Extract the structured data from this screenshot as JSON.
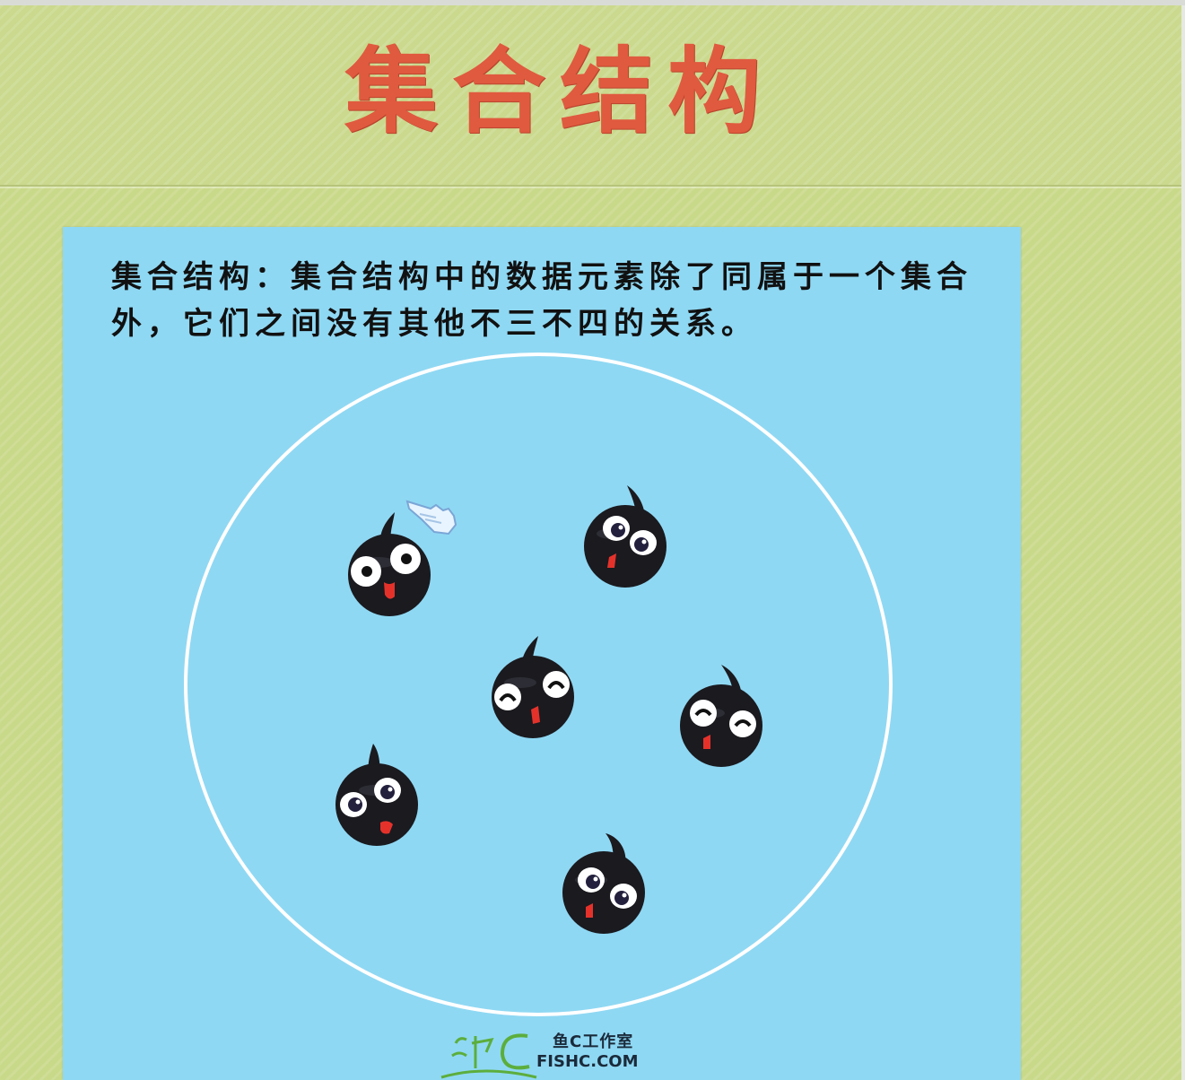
{
  "slide": {
    "title": "集合结构",
    "description": "集合结构：集合结构中的数据元素除了同属于一个集合外，它们之间没有其他不三不四的关系。"
  },
  "colors": {
    "title": "#e05a3f",
    "background": "#c9d98a",
    "panel": "#8fd8f3",
    "ring": "#ffffff"
  },
  "elements": [
    {
      "icon": "tadpole-icon",
      "expression": "surprised"
    },
    {
      "icon": "tadpole-icon",
      "expression": "looking"
    },
    {
      "icon": "tadpole-icon",
      "expression": "happy"
    },
    {
      "icon": "tadpole-icon",
      "expression": "smiling"
    },
    {
      "icon": "tadpole-icon",
      "expression": "looking"
    },
    {
      "icon": "tadpole-icon",
      "expression": "looking"
    }
  ],
  "logo": {
    "cn": "鱼C工作室",
    "en": "FISHC.COM"
  }
}
